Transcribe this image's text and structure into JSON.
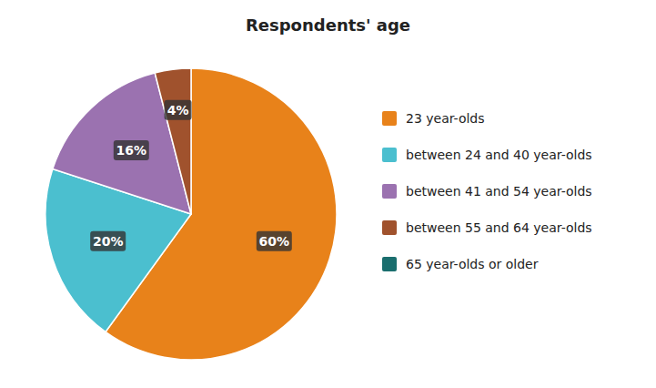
{
  "chart_data": {
    "type": "pie",
    "title": "Respondents' age",
    "categories": [
      "23 year-olds",
      "between 24 and 40 year-olds",
      "between 41 and 54 year-olds",
      "between 55 and 64 year-olds",
      "65 year-olds or older"
    ],
    "values": [
      60,
      20,
      16,
      4,
      null
    ],
    "value_labels": [
      "60%",
      "20%",
      "16%",
      "4%",
      null
    ],
    "colors": [
      "#E8821A",
      "#4BBFCF",
      "#9B72B0",
      "#A0522D",
      "#1A6E6E"
    ],
    "data_labels": true,
    "legend": "right"
  }
}
